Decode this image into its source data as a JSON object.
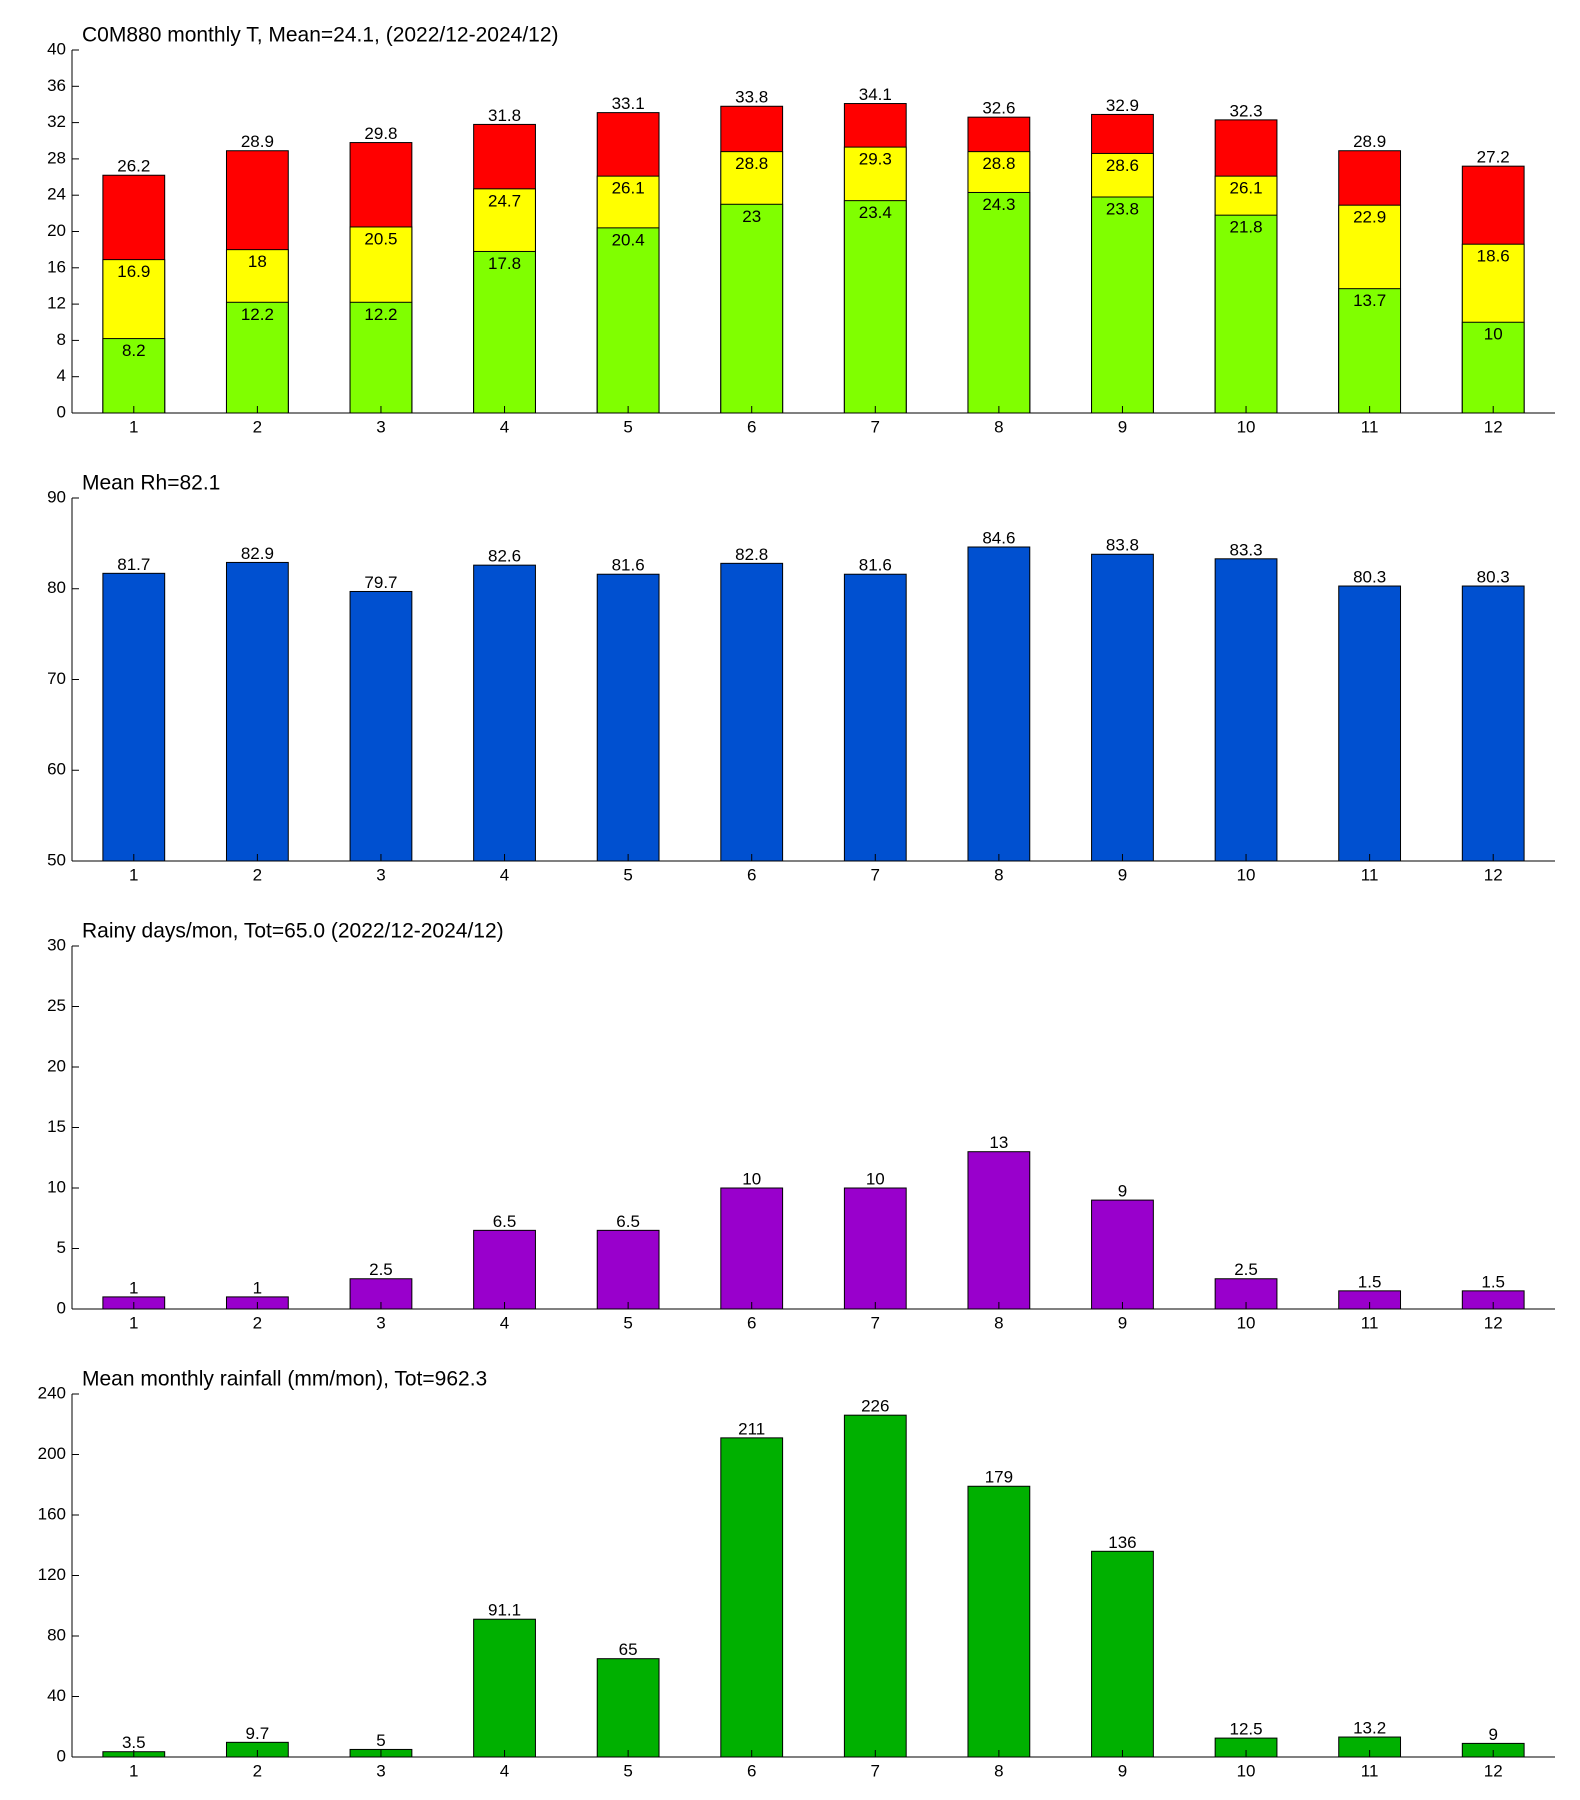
{
  "chart_data": [
    {
      "type": "bar",
      "title": "C0M880 monthly T, Mean=24.1, (2022/12-2024/12)",
      "categories": [
        "1",
        "2",
        "3",
        "4",
        "5",
        "6",
        "7",
        "8",
        "9",
        "10",
        "11",
        "12"
      ],
      "series": [
        {
          "color": "#80ff00",
          "values": [
            8.2,
            12.2,
            12.2,
            17.8,
            20.4,
            23,
            23.4,
            24.3,
            23.8,
            21.8,
            13.7,
            10
          ]
        },
        {
          "color": "#ffff00",
          "values": [
            16.9,
            18,
            20.5,
            24.7,
            26.1,
            28.8,
            29.3,
            28.8,
            28.6,
            26.1,
            22.9,
            18.6
          ]
        },
        {
          "color": "#ff0000",
          "values": [
            26.2,
            28.9,
            29.8,
            31.8,
            33.1,
            33.8,
            34.1,
            32.6,
            32.9,
            32.3,
            28.9,
            27.2
          ]
        }
      ],
      "ylim": [
        0,
        40
      ],
      "yticks": [
        0,
        4,
        8,
        12,
        16,
        20,
        24,
        28,
        32,
        36,
        40
      ]
    },
    {
      "type": "bar",
      "title": "Mean Rh=82.1",
      "categories": [
        "1",
        "2",
        "3",
        "4",
        "5",
        "6",
        "7",
        "8",
        "9",
        "10",
        "11",
        "12"
      ],
      "series": [
        {
          "color": "#0050d0",
          "values": [
            81.7,
            82.9,
            79.7,
            82.6,
            81.6,
            82.8,
            81.6,
            84.6,
            83.8,
            83.3,
            80.3,
            80.3
          ]
        }
      ],
      "ylim": [
        50,
        90
      ],
      "yticks": [
        50,
        60,
        70,
        80,
        90
      ]
    },
    {
      "type": "bar",
      "title": "Rainy days/mon, Tot=65.0 (2022/12-2024/12)",
      "categories": [
        "1",
        "2",
        "3",
        "4",
        "5",
        "6",
        "7",
        "8",
        "9",
        "10",
        "11",
        "12"
      ],
      "series": [
        {
          "color": "#9900cc",
          "values": [
            1,
            1,
            2.5,
            6.5,
            6.5,
            10,
            10,
            13,
            9,
            2.5,
            1.5,
            1.5
          ]
        }
      ],
      "ylim": [
        0,
        30
      ],
      "yticks": [
        0,
        5,
        10,
        15,
        20,
        25,
        30
      ]
    },
    {
      "type": "bar",
      "title": "Mean monthly rainfall (mm/mon), Tot=962.3",
      "categories": [
        "1",
        "2",
        "3",
        "4",
        "5",
        "6",
        "7",
        "8",
        "9",
        "10",
        "11",
        "12"
      ],
      "series": [
        {
          "color": "#00b000",
          "values": [
            3.5,
            9.7,
            5,
            91.1,
            65,
            211,
            226,
            179,
            136,
            12.5,
            13.2,
            9
          ]
        }
      ],
      "ylim": [
        0,
        240
      ],
      "yticks": [
        0,
        40,
        80,
        120,
        160,
        200,
        240
      ]
    }
  ]
}
